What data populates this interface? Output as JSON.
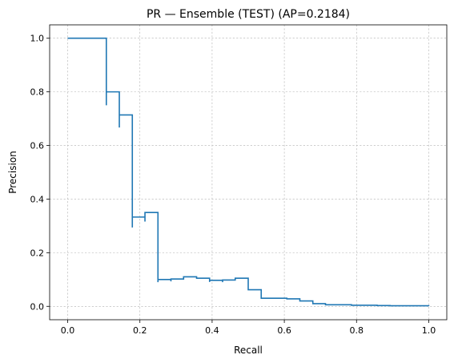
{
  "chart_data": {
    "type": "line",
    "title": "PR — Ensemble (TEST) (AP=0.2184)",
    "xlabel": "Recall",
    "ylabel": "Precision",
    "xlim": [
      -0.05,
      1.05
    ],
    "ylim": [
      -0.05,
      1.05
    ],
    "xticks": [
      0.0,
      0.2,
      0.4,
      0.6,
      0.8,
      1.0
    ],
    "xtick_labels": [
      "0.0",
      "0.2",
      "0.4",
      "0.6",
      "0.8",
      "1.0"
    ],
    "yticks": [
      0.0,
      0.2,
      0.4,
      0.6,
      0.8,
      1.0
    ],
    "ytick_labels": [
      "0.0",
      "0.2",
      "0.4",
      "0.6",
      "0.8",
      "1.0"
    ],
    "grid": true,
    "series": [
      {
        "color": "#1f77b4",
        "drawstyle": "steps-post",
        "recall": [
          0.0,
          0.107,
          0.107,
          0.143,
          0.143,
          0.179,
          0.179,
          0.214,
          0.214,
          0.25,
          0.25,
          0.286,
          0.286,
          0.321,
          0.357,
          0.393,
          0.393,
          0.429,
          0.429,
          0.464,
          0.5,
          0.536,
          0.571,
          0.607,
          0.643,
          0.679,
          0.714,
          0.75,
          0.786,
          0.821,
          0.857,
          0.893,
          0.929,
          1.0
        ],
        "precision": [
          1.0,
          0.75,
          0.8,
          0.667,
          0.714,
          0.294,
          0.333,
          0.316,
          0.35,
          0.09,
          0.1,
          0.093,
          0.102,
          0.11,
          0.105,
          0.091,
          0.097,
          0.09,
          0.098,
          0.105,
          0.062,
          0.03,
          0.03,
          0.028,
          0.02,
          0.01,
          0.006,
          0.006,
          0.004,
          0.004,
          0.003,
          0.002,
          0.002,
          0.001
        ]
      }
    ]
  }
}
